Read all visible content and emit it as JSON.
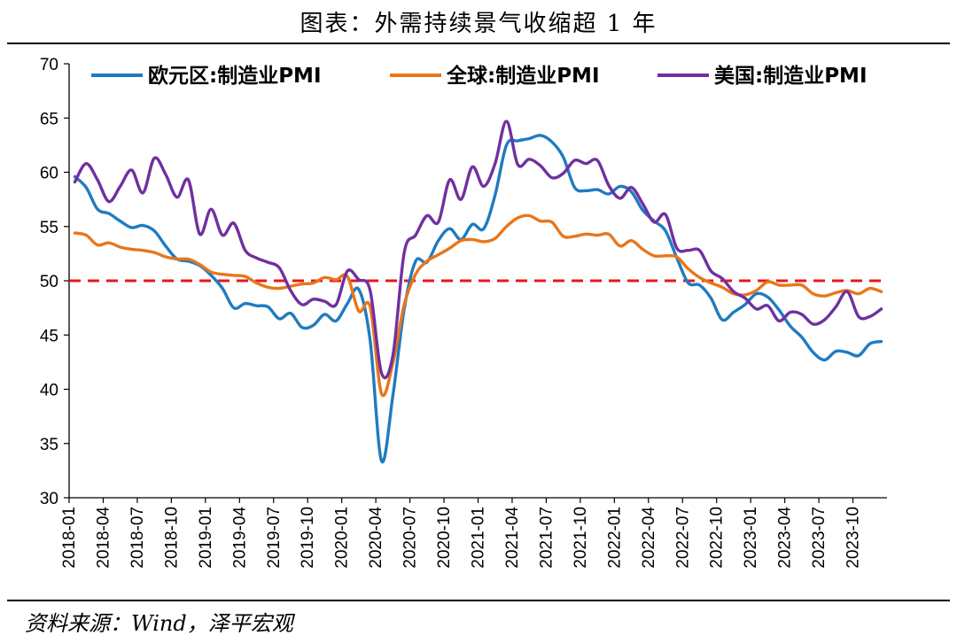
{
  "header": {
    "title": "图表：外需持续景气收缩超 1 年"
  },
  "footer": {
    "source": "资料来源：Wind，泽平宏观"
  },
  "chart_data": {
    "type": "line",
    "title": "图表：外需持续景气收缩超 1 年",
    "xlabel": "",
    "ylabel": "",
    "ylim": [
      30,
      70
    ],
    "yticks": [
      30,
      35,
      40,
      45,
      50,
      55,
      60,
      65,
      70
    ],
    "xtick_labels": [
      "2018-01",
      "2018-04",
      "2018-07",
      "2018-10",
      "2019-01",
      "2019-04",
      "2019-07",
      "2019-10",
      "2020-01",
      "2020-04",
      "2020-07",
      "2020-10",
      "2021-01",
      "2021-04",
      "2021-07",
      "2021-10",
      "2022-01",
      "2022-04",
      "2022-07",
      "2022-10",
      "2023-01",
      "2023-04",
      "2023-07",
      "2023-10"
    ],
    "grid": false,
    "legend_position": "top",
    "reference_line": {
      "value": 50,
      "color": "#e8161b",
      "style": "dashed"
    },
    "x": [
      "2018-01",
      "2018-02",
      "2018-03",
      "2018-04",
      "2018-05",
      "2018-06",
      "2018-07",
      "2018-08",
      "2018-09",
      "2018-10",
      "2018-11",
      "2018-12",
      "2019-01",
      "2019-02",
      "2019-03",
      "2019-04",
      "2019-05",
      "2019-06",
      "2019-07",
      "2019-08",
      "2019-09",
      "2019-10",
      "2019-11",
      "2019-12",
      "2020-01",
      "2020-02",
      "2020-03",
      "2020-04",
      "2020-05",
      "2020-06",
      "2020-07",
      "2020-08",
      "2020-09",
      "2020-10",
      "2020-11",
      "2020-12",
      "2021-01",
      "2021-02",
      "2021-03",
      "2021-04",
      "2021-05",
      "2021-06",
      "2021-07",
      "2021-08",
      "2021-09",
      "2021-10",
      "2021-11",
      "2021-12",
      "2022-01",
      "2022-02",
      "2022-03",
      "2022-04",
      "2022-05",
      "2022-06",
      "2022-07",
      "2022-08",
      "2022-09",
      "2022-10",
      "2022-11",
      "2022-12",
      "2023-01",
      "2023-02",
      "2023-03",
      "2023-04",
      "2023-05",
      "2023-06",
      "2023-07",
      "2023-08",
      "2023-09",
      "2023-10",
      "2023-11",
      "2023-12"
    ],
    "series": [
      {
        "name": "欧元区:制造业PMI",
        "color": "#1f7bc0",
        "values": [
          59.6,
          58.6,
          56.6,
          56.2,
          55.5,
          54.9,
          55.1,
          54.6,
          53.2,
          52.0,
          51.8,
          51.4,
          50.5,
          49.3,
          47.5,
          47.9,
          47.7,
          47.6,
          46.5,
          47.0,
          45.7,
          45.9,
          46.9,
          46.3,
          47.9,
          49.2,
          44.5,
          33.4,
          39.4,
          47.4,
          51.8,
          51.7,
          53.7,
          54.8,
          53.8,
          55.2,
          54.8,
          57.9,
          62.5,
          62.9,
          63.1,
          63.4,
          62.8,
          61.4,
          58.6,
          58.3,
          58.4,
          58.0,
          58.7,
          58.2,
          56.5,
          55.5,
          54.6,
          52.1,
          49.8,
          49.6,
          48.4,
          46.4,
          47.1,
          47.8,
          48.8,
          48.5,
          47.3,
          45.8,
          44.8,
          43.4,
          42.7,
          43.5,
          43.4,
          43.1,
          44.2,
          44.4
        ]
      },
      {
        "name": "全球:制造业PMI",
        "color": "#e8761b",
        "values": [
          54.4,
          54.2,
          53.3,
          53.5,
          53.1,
          52.9,
          52.8,
          52.6,
          52.2,
          52.0,
          52.0,
          51.5,
          50.8,
          50.6,
          50.5,
          50.4,
          49.8,
          49.4,
          49.3,
          49.5,
          49.7,
          49.8,
          50.3,
          50.1,
          50.4,
          47.2,
          47.6,
          39.6,
          42.4,
          47.8,
          50.6,
          51.8,
          52.4,
          53.0,
          53.7,
          53.8,
          53.6,
          53.9,
          55.0,
          55.8,
          56.0,
          55.5,
          55.4,
          54.1,
          54.1,
          54.3,
          54.2,
          54.3,
          53.2,
          53.7,
          52.9,
          52.3,
          52.3,
          52.2,
          51.1,
          50.3,
          49.8,
          49.4,
          48.8,
          48.7,
          49.1,
          49.9,
          49.6,
          49.6,
          49.6,
          48.8,
          48.6,
          48.9,
          49.1,
          48.8,
          49.3,
          49.0
        ]
      },
      {
        "name": "美国:制造业PMI",
        "color": "#7030a0",
        "values": [
          59.1,
          60.8,
          59.3,
          57.3,
          58.7,
          60.2,
          58.1,
          61.3,
          59.8,
          57.7,
          59.3,
          54.3,
          56.6,
          54.2,
          55.3,
          52.8,
          52.1,
          51.7,
          51.2,
          49.1,
          47.8,
          48.3,
          48.1,
          47.8,
          50.9,
          50.1,
          49.1,
          41.5,
          43.1,
          52.6,
          54.2,
          56.0,
          55.4,
          59.3,
          57.5,
          60.5,
          58.7,
          60.8,
          64.7,
          60.7,
          61.2,
          60.6,
          59.5,
          59.9,
          61.1,
          60.8,
          61.1,
          58.8,
          57.6,
          58.6,
          57.1,
          55.4,
          56.1,
          53.0,
          52.8,
          52.8,
          50.9,
          50.2,
          49.0,
          48.4,
          47.4,
          47.7,
          46.3,
          47.1,
          46.9,
          46.0,
          46.4,
          47.6,
          49.0,
          46.7,
          46.7,
          47.4
        ]
      }
    ]
  }
}
